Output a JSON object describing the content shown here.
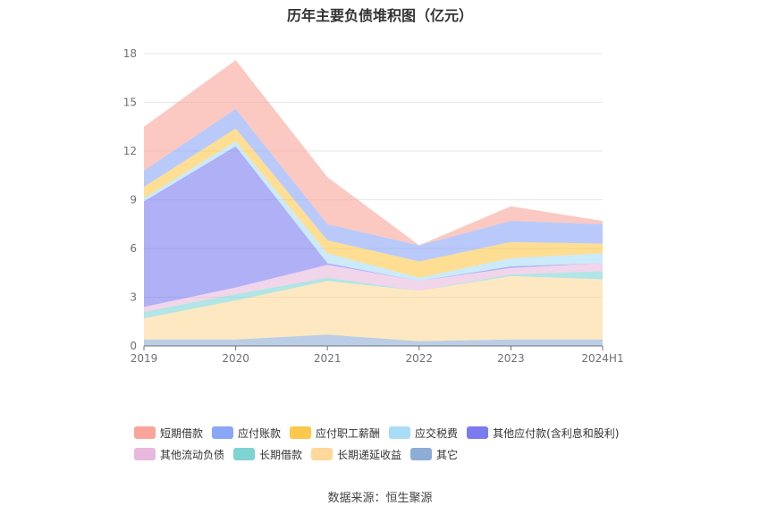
{
  "chart_data": {
    "type": "area",
    "stacked": true,
    "title": "历年主要负债堆积图（亿元）",
    "source": "数据来源：恒生聚源",
    "categories": [
      "2019",
      "2020",
      "2021",
      "2022",
      "2023",
      "2024H1"
    ],
    "ylim": [
      0,
      18
    ],
    "yticks": [
      "0",
      "3",
      "6",
      "9",
      "12",
      "15",
      "18"
    ],
    "grid": true,
    "legend_position": "bottom",
    "series": [
      {
        "name": "其它",
        "color": "#8eadd6",
        "values": [
          0.4,
          0.4,
          0.7,
          0.3,
          0.4,
          0.4
        ]
      },
      {
        "name": "长期递延收益",
        "color": "#fdd89a",
        "values": [
          1.3,
          2.4,
          3.3,
          3.1,
          3.9,
          3.7
        ]
      },
      {
        "name": "长期借款",
        "color": "#7ed3d3",
        "values": [
          0.4,
          0.4,
          0.2,
          0.0,
          0.1,
          0.5
        ]
      },
      {
        "name": "其他流动负债",
        "color": "#e8b9dc",
        "values": [
          0.3,
          0.4,
          0.8,
          0.6,
          0.4,
          0.5
        ]
      },
      {
        "name": "其他应付款(含利息和股利)",
        "color": "#7b7bf0",
        "values": [
          6.5,
          8.7,
          0.1,
          0.0,
          0.1,
          0.0
        ]
      },
      {
        "name": "应交税费",
        "color": "#a8dcf7",
        "values": [
          0.2,
          0.3,
          0.6,
          0.2,
          0.5,
          0.6
        ]
      },
      {
        "name": "应付职工薪酬",
        "color": "#fcc84b",
        "values": [
          0.7,
          0.8,
          0.8,
          1.0,
          1.0,
          0.6
        ]
      },
      {
        "name": "应付账款",
        "color": "#8aa6f7",
        "values": [
          1.0,
          1.2,
          1.0,
          1.0,
          1.3,
          1.2
        ]
      },
      {
        "name": "短期借款",
        "color": "#f9a59a",
        "values": [
          2.7,
          3.0,
          2.9,
          0.0,
          0.9,
          0.2
        ]
      }
    ],
    "legend_rows": [
      [
        "短期借款",
        "应付账款",
        "应付职工薪酬",
        "应交税费",
        "其他应付款(含利息和股利)"
      ],
      [
        "其他流动负债",
        "长期借款",
        "长期递延收益",
        "其它"
      ]
    ]
  }
}
